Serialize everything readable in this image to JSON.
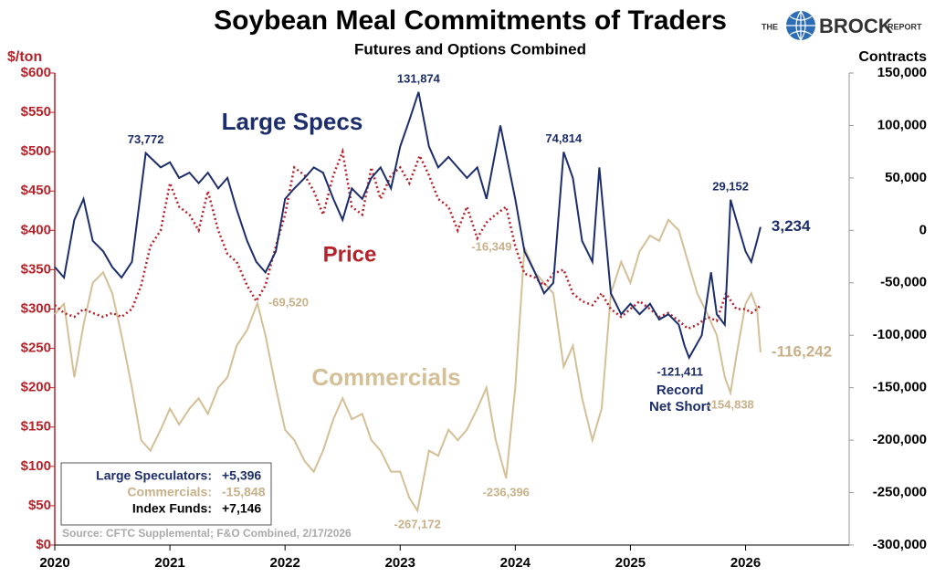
{
  "chart_data": {
    "type": "line",
    "title": "Soybean Meal Commitments of Traders",
    "subtitle": "Futures and Options Combined",
    "logo": {
      "pre": "THE",
      "name": "BROCK",
      "post": "REPORT"
    },
    "ylabel": "$/ton",
    "y2label": "Contracts",
    "source": "Source: CFTC Supplemental; F&O Combined, 2/17/2026",
    "xlim": [
      2020,
      2026.9
    ],
    "xticks": [
      2020,
      2021,
      2022,
      2023,
      2024,
      2025,
      2026
    ],
    "ylim": [
      0,
      600
    ],
    "yticks": [
      {
        "value": 0,
        "label": "$0"
      },
      {
        "value": 50,
        "label": "$50"
      },
      {
        "value": 100,
        "label": "$100"
      },
      {
        "value": 150,
        "label": "$150"
      },
      {
        "value": 200,
        "label": "$200"
      },
      {
        "value": 250,
        "label": "$250"
      },
      {
        "value": 300,
        "label": "$300"
      },
      {
        "value": 350,
        "label": "$350"
      },
      {
        "value": 400,
        "label": "$400"
      },
      {
        "value": 450,
        "label": "$450"
      },
      {
        "value": 500,
        "label": "$500"
      },
      {
        "value": 550,
        "label": "$550"
      },
      {
        "value": 600,
        "label": "$600"
      }
    ],
    "y2lim": [
      -300000,
      150000
    ],
    "y2ticks": [
      {
        "value": -300000,
        "label": "-300,000"
      },
      {
        "value": -250000,
        "label": "-250,000"
      },
      {
        "value": -200000,
        "label": "-200,000"
      },
      {
        "value": -150000,
        "label": "-150,000"
      },
      {
        "value": -100000,
        "label": "-100,000"
      },
      {
        "value": -50000,
        "label": "-50,000"
      },
      {
        "value": 0,
        "label": "0"
      },
      {
        "value": 50000,
        "label": "50,000"
      },
      {
        "value": 100000,
        "label": "100,000"
      },
      {
        "value": 150000,
        "label": "150,000"
      }
    ],
    "series": [
      {
        "name": "Large Specs",
        "color": "#1c2d6b",
        "axis": "y2",
        "x": [
          2020.0,
          2020.08,
          2020.17,
          2020.25,
          2020.33,
          2020.42,
          2020.5,
          2020.58,
          2020.67,
          2020.79,
          2020.92,
          2021.0,
          2021.08,
          2021.17,
          2021.25,
          2021.33,
          2021.42,
          2021.5,
          2021.58,
          2021.67,
          2021.75,
          2021.83,
          2021.92,
          2022.0,
          2022.08,
          2022.17,
          2022.25,
          2022.33,
          2022.42,
          2022.5,
          2022.58,
          2022.67,
          2022.75,
          2022.83,
          2022.92,
          2023.0,
          2023.08,
          2023.16,
          2023.25,
          2023.33,
          2023.42,
          2023.5,
          2023.58,
          2023.67,
          2023.75,
          2023.87,
          2024.0,
          2024.08,
          2024.17,
          2024.25,
          2024.33,
          2024.42,
          2024.5,
          2024.58,
          2024.67,
          2024.73,
          2024.83,
          2024.92,
          2025.0,
          2025.08,
          2025.17,
          2025.25,
          2025.33,
          2025.42,
          2025.47,
          2025.51,
          2025.62,
          2025.7,
          2025.75,
          2025.82,
          2025.87,
          2025.92,
          2026.0,
          2026.05,
          2026.1,
          2026.13
        ],
        "values": [
          -35000,
          -45000,
          10000,
          30000,
          -10000,
          -20000,
          -35000,
          -45000,
          -30000,
          73772,
          60000,
          65000,
          50000,
          55000,
          45000,
          55000,
          40000,
          50000,
          20000,
          -10000,
          -30000,
          -40000,
          -20000,
          30000,
          40000,
          50000,
          60000,
          55000,
          30000,
          10000,
          40000,
          30000,
          50000,
          60000,
          40000,
          80000,
          105000,
          131874,
          80000,
          60000,
          70000,
          60000,
          50000,
          60000,
          30000,
          100000,
          30000,
          -20000,
          -40000,
          -60000,
          -50000,
          74814,
          50000,
          -10000,
          -30000,
          60000,
          -60000,
          -80000,
          -70000,
          -80000,
          -70000,
          -85000,
          -80000,
          -90000,
          -110000,
          -121411,
          -100000,
          -40000,
          -80000,
          -90000,
          29152,
          10000,
          -20000,
          -30000,
          -10000,
          3234
        ],
        "labels": [
          {
            "x": 2020.79,
            "value": 73772,
            "label": "73,772"
          },
          {
            "x": 2023.16,
            "value": 131874,
            "label": "131,874"
          },
          {
            "x": 2024.42,
            "value": 74814,
            "label": "74,814"
          },
          {
            "x": 2025.87,
            "value": 29152,
            "label": "29,152"
          },
          {
            "x": 2025.51,
            "value": -121411,
            "label": "-121,411",
            "note": [
              "Record",
              "Net Short"
            ]
          },
          {
            "x": 2026.13,
            "value": 3234,
            "label": "3,234"
          }
        ]
      },
      {
        "name": "Commercials",
        "color": "#d4bf96",
        "axis": "y2",
        "x": [
          2020.0,
          2020.08,
          2020.17,
          2020.25,
          2020.33,
          2020.42,
          2020.5,
          2020.58,
          2020.67,
          2020.75,
          2020.83,
          2020.92,
          2021.0,
          2021.08,
          2021.17,
          2021.25,
          2021.33,
          2021.42,
          2021.5,
          2021.58,
          2021.67,
          2021.76,
          2021.83,
          2021.92,
          2022.0,
          2022.08,
          2022.17,
          2022.25,
          2022.33,
          2022.42,
          2022.5,
          2022.58,
          2022.67,
          2022.75,
          2022.83,
          2022.92,
          2023.0,
          2023.08,
          2023.15,
          2023.25,
          2023.33,
          2023.42,
          2023.5,
          2023.58,
          2023.67,
          2023.75,
          2023.83,
          2023.92,
          2024.0,
          2024.08,
          2024.17,
          2024.25,
          2024.33,
          2024.42,
          2024.5,
          2024.58,
          2024.67,
          2024.75,
          2024.83,
          2024.92,
          2025.0,
          2025.08,
          2025.17,
          2025.25,
          2025.33,
          2025.42,
          2025.5,
          2025.58,
          2025.67,
          2025.75,
          2025.82,
          2025.87,
          2025.92,
          2026.0,
          2026.05,
          2026.1,
          2026.13
        ],
        "values": [
          -80000,
          -70000,
          -140000,
          -90000,
          -50000,
          -40000,
          -60000,
          -100000,
          -150000,
          -200000,
          -210000,
          -190000,
          -170000,
          -185000,
          -170000,
          -160000,
          -175000,
          -150000,
          -140000,
          -110000,
          -95000,
          -69520,
          -100000,
          -150000,
          -190000,
          -200000,
          -220000,
          -230000,
          -210000,
          -180000,
          -160000,
          -180000,
          -175000,
          -200000,
          -210000,
          -230000,
          -230000,
          -255000,
          -267172,
          -210000,
          -215000,
          -190000,
          -200000,
          -190000,
          -170000,
          -150000,
          -200000,
          -236396,
          -150000,
          -16349,
          -40000,
          -50000,
          -60000,
          -130000,
          -110000,
          -160000,
          -200000,
          -170000,
          -60000,
          -30000,
          -50000,
          -20000,
          -5000,
          -10000,
          10000,
          0,
          -30000,
          -60000,
          -80000,
          -100000,
          -140000,
          -154838,
          -120000,
          -70000,
          -60000,
          -75000,
          -116242
        ],
        "labels": [
          {
            "x": 2021.76,
            "value": -69520,
            "label": "-69,520"
          },
          {
            "x": 2023.15,
            "value": -267172,
            "label": "-267,172"
          },
          {
            "x": 2023.92,
            "value": -236396,
            "label": "-236,396"
          },
          {
            "x": 2024.08,
            "value": -16349,
            "label": "-16,349"
          },
          {
            "x": 2025.87,
            "value": -154838,
            "label": "-154,838"
          },
          {
            "x": 2026.13,
            "value": -116242,
            "label": "-116,242"
          }
        ]
      },
      {
        "name": "Price",
        "color": "#b5232a",
        "dotted": true,
        "x": [
          2020.0,
          2020.08,
          2020.17,
          2020.25,
          2020.33,
          2020.42,
          2020.5,
          2020.58,
          2020.67,
          2020.75,
          2020.83,
          2020.92,
          2021.0,
          2021.08,
          2021.17,
          2021.25,
          2021.33,
          2021.42,
          2021.5,
          2021.58,
          2021.67,
          2021.75,
          2021.83,
          2021.92,
          2022.0,
          2022.08,
          2022.17,
          2022.25,
          2022.33,
          2022.42,
          2022.5,
          2022.58,
          2022.67,
          2022.75,
          2022.83,
          2022.92,
          2023.0,
          2023.08,
          2023.17,
          2023.25,
          2023.33,
          2023.42,
          2023.5,
          2023.58,
          2023.67,
          2023.75,
          2023.83,
          2023.92,
          2024.0,
          2024.08,
          2024.17,
          2024.25,
          2024.33,
          2024.42,
          2024.5,
          2024.58,
          2024.67,
          2024.75,
          2024.83,
          2024.92,
          2025.0,
          2025.08,
          2025.17,
          2025.25,
          2025.33,
          2025.42,
          2025.5,
          2025.58,
          2025.67,
          2025.75,
          2025.83,
          2025.92,
          2026.0,
          2026.05,
          2026.1,
          2026.13
        ],
        "values": [
          305,
          295,
          290,
          300,
          295,
          290,
          295,
          290,
          300,
          330,
          380,
          400,
          460,
          430,
          420,
          400,
          450,
          400,
          370,
          360,
          330,
          310,
          330,
          380,
          420,
          480,
          470,
          450,
          420,
          470,
          500,
          430,
          420,
          480,
          440,
          470,
          480,
          460,
          495,
          470,
          440,
          430,
          400,
          430,
          390,
          410,
          420,
          430,
          380,
          345,
          340,
          330,
          345,
          350,
          320,
          310,
          305,
          320,
          300,
          290,
          300,
          310,
          300,
          290,
          295,
          285,
          275,
          280,
          290,
          285,
          320,
          300,
          300,
          295,
          300,
          305
        ]
      }
    ],
    "summary": [
      {
        "name": "Large Speculators:",
        "value": 5396,
        "label": "+5,396",
        "color": "#1c2d6b"
      },
      {
        "name": "Commercials:",
        "value": -15848,
        "label": "-15,848",
        "color": "#c9b088"
      },
      {
        "name": "Index Funds:",
        "value": 7146,
        "label": "+7,146",
        "color": "#000000"
      }
    ]
  }
}
